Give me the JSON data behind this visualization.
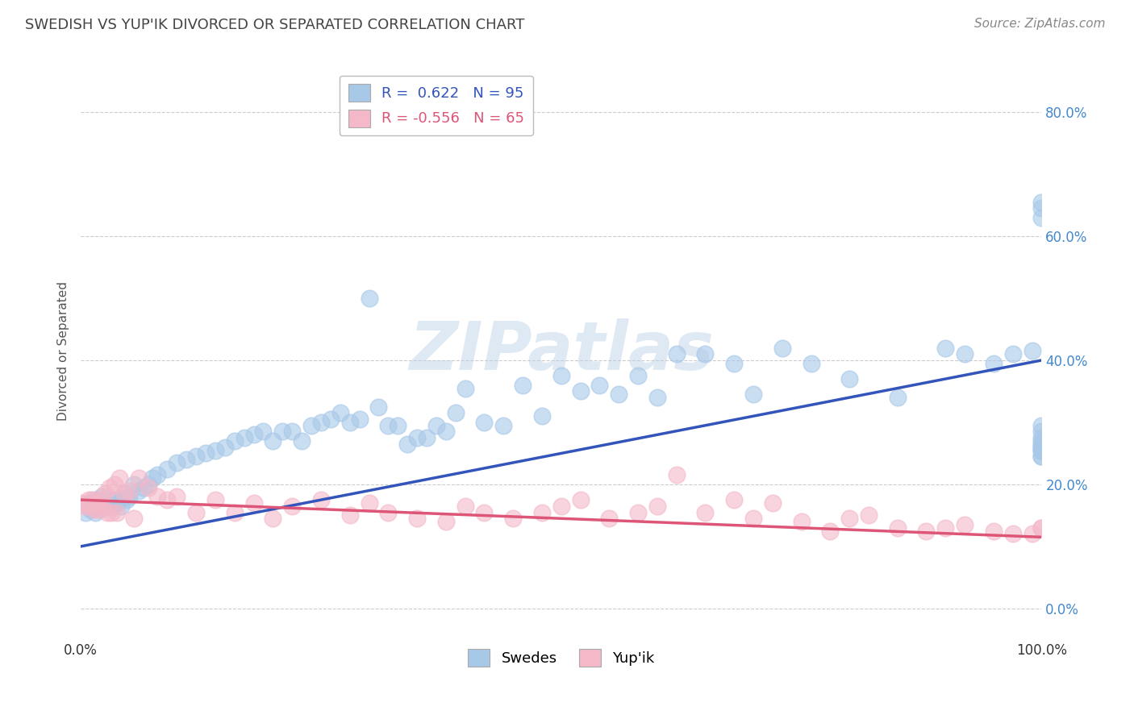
{
  "title": "SWEDISH VS YUP'IK DIVORCED OR SEPARATED CORRELATION CHART",
  "source": "Source: ZipAtlas.com",
  "ylabel": "Divorced or Separated",
  "xlim": [
    0.0,
    1.0
  ],
  "ylim": [
    -0.05,
    0.88
  ],
  "yticks": [
    0.0,
    0.2,
    0.4,
    0.6,
    0.8
  ],
  "ytick_labels": [
    "0.0%",
    "20.0%",
    "40.0%",
    "60.0%",
    "80.0%"
  ],
  "xticks": [
    0.0,
    1.0
  ],
  "xtick_labels": [
    "0.0%",
    "100.0%"
  ],
  "blue_R": 0.622,
  "blue_N": 95,
  "pink_R": -0.556,
  "pink_N": 65,
  "blue_color": "#a8c8e8",
  "pink_color": "#f4b8c8",
  "blue_line_color": "#3355bb",
  "pink_line_color": "#dd5577",
  "watermark": "ZIPatlas",
  "legend_labels": [
    "Swedes",
    "Yup'ik"
  ],
  "blue_scatter_x": [
    0.005,
    0.008,
    0.01,
    0.012,
    0.015,
    0.015,
    0.018,
    0.02,
    0.022,
    0.025,
    0.028,
    0.03,
    0.032,
    0.035,
    0.038,
    0.04,
    0.042,
    0.045,
    0.048,
    0.05,
    0.055,
    0.06,
    0.065,
    0.07,
    0.075,
    0.08,
    0.09,
    0.1,
    0.11,
    0.12,
    0.13,
    0.14,
    0.15,
    0.16,
    0.17,
    0.18,
    0.19,
    0.2,
    0.21,
    0.22,
    0.23,
    0.24,
    0.25,
    0.26,
    0.27,
    0.28,
    0.29,
    0.3,
    0.31,
    0.32,
    0.33,
    0.34,
    0.35,
    0.36,
    0.37,
    0.38,
    0.39,
    0.4,
    0.42,
    0.44,
    0.46,
    0.48,
    0.5,
    0.52,
    0.54,
    0.56,
    0.58,
    0.6,
    0.62,
    0.65,
    0.68,
    0.7,
    0.73,
    0.76,
    0.8,
    0.85,
    0.9,
    0.92,
    0.95,
    0.97,
    0.99,
    1.0,
    1.0,
    1.0,
    1.0,
    1.0,
    1.0,
    1.0,
    1.0,
    1.0,
    1.0,
    1.0,
    1.0,
    1.0,
    1.0
  ],
  "blue_scatter_y": [
    0.155,
    0.165,
    0.16,
    0.17,
    0.155,
    0.175,
    0.165,
    0.16,
    0.18,
    0.165,
    0.17,
    0.175,
    0.165,
    0.175,
    0.17,
    0.175,
    0.165,
    0.185,
    0.175,
    0.18,
    0.2,
    0.19,
    0.195,
    0.2,
    0.21,
    0.215,
    0.225,
    0.235,
    0.24,
    0.245,
    0.25,
    0.255,
    0.26,
    0.27,
    0.275,
    0.28,
    0.285,
    0.27,
    0.285,
    0.285,
    0.27,
    0.295,
    0.3,
    0.305,
    0.315,
    0.3,
    0.305,
    0.5,
    0.325,
    0.295,
    0.295,
    0.265,
    0.275,
    0.275,
    0.295,
    0.285,
    0.315,
    0.355,
    0.3,
    0.295,
    0.36,
    0.31,
    0.375,
    0.35,
    0.36,
    0.345,
    0.375,
    0.34,
    0.41,
    0.41,
    0.395,
    0.345,
    0.42,
    0.395,
    0.37,
    0.34,
    0.42,
    0.41,
    0.395,
    0.41,
    0.415,
    0.245,
    0.27,
    0.26,
    0.285,
    0.295,
    0.265,
    0.275,
    0.63,
    0.645,
    0.655,
    0.26,
    0.255,
    0.245,
    0.255
  ],
  "pink_scatter_x": [
    0.0,
    0.003,
    0.006,
    0.008,
    0.01,
    0.012,
    0.014,
    0.016,
    0.018,
    0.02,
    0.022,
    0.025,
    0.028,
    0.03,
    0.032,
    0.035,
    0.038,
    0.04,
    0.045,
    0.05,
    0.055,
    0.06,
    0.07,
    0.08,
    0.09,
    0.1,
    0.12,
    0.14,
    0.16,
    0.18,
    0.2,
    0.22,
    0.25,
    0.28,
    0.3,
    0.32,
    0.35,
    0.38,
    0.4,
    0.42,
    0.45,
    0.48,
    0.5,
    0.52,
    0.55,
    0.58,
    0.6,
    0.62,
    0.65,
    0.68,
    0.7,
    0.72,
    0.75,
    0.78,
    0.8,
    0.82,
    0.85,
    0.88,
    0.9,
    0.92,
    0.95,
    0.97,
    0.99,
    1.0,
    1.0
  ],
  "pink_scatter_y": [
    0.17,
    0.165,
    0.17,
    0.175,
    0.165,
    0.175,
    0.16,
    0.17,
    0.16,
    0.175,
    0.165,
    0.185,
    0.155,
    0.195,
    0.155,
    0.2,
    0.155,
    0.21,
    0.185,
    0.19,
    0.145,
    0.21,
    0.195,
    0.18,
    0.175,
    0.18,
    0.155,
    0.175,
    0.155,
    0.17,
    0.145,
    0.165,
    0.175,
    0.15,
    0.17,
    0.155,
    0.145,
    0.14,
    0.165,
    0.155,
    0.145,
    0.155,
    0.165,
    0.175,
    0.145,
    0.155,
    0.165,
    0.215,
    0.155,
    0.175,
    0.145,
    0.17,
    0.14,
    0.125,
    0.145,
    0.15,
    0.13,
    0.125,
    0.13,
    0.135,
    0.125,
    0.12,
    0.12,
    0.13,
    0.13
  ],
  "blue_line_x": [
    0.0,
    1.0
  ],
  "blue_line_y": [
    0.1,
    0.4
  ],
  "pink_line_x": [
    0.0,
    1.0
  ],
  "pink_line_y": [
    0.175,
    0.115
  ]
}
